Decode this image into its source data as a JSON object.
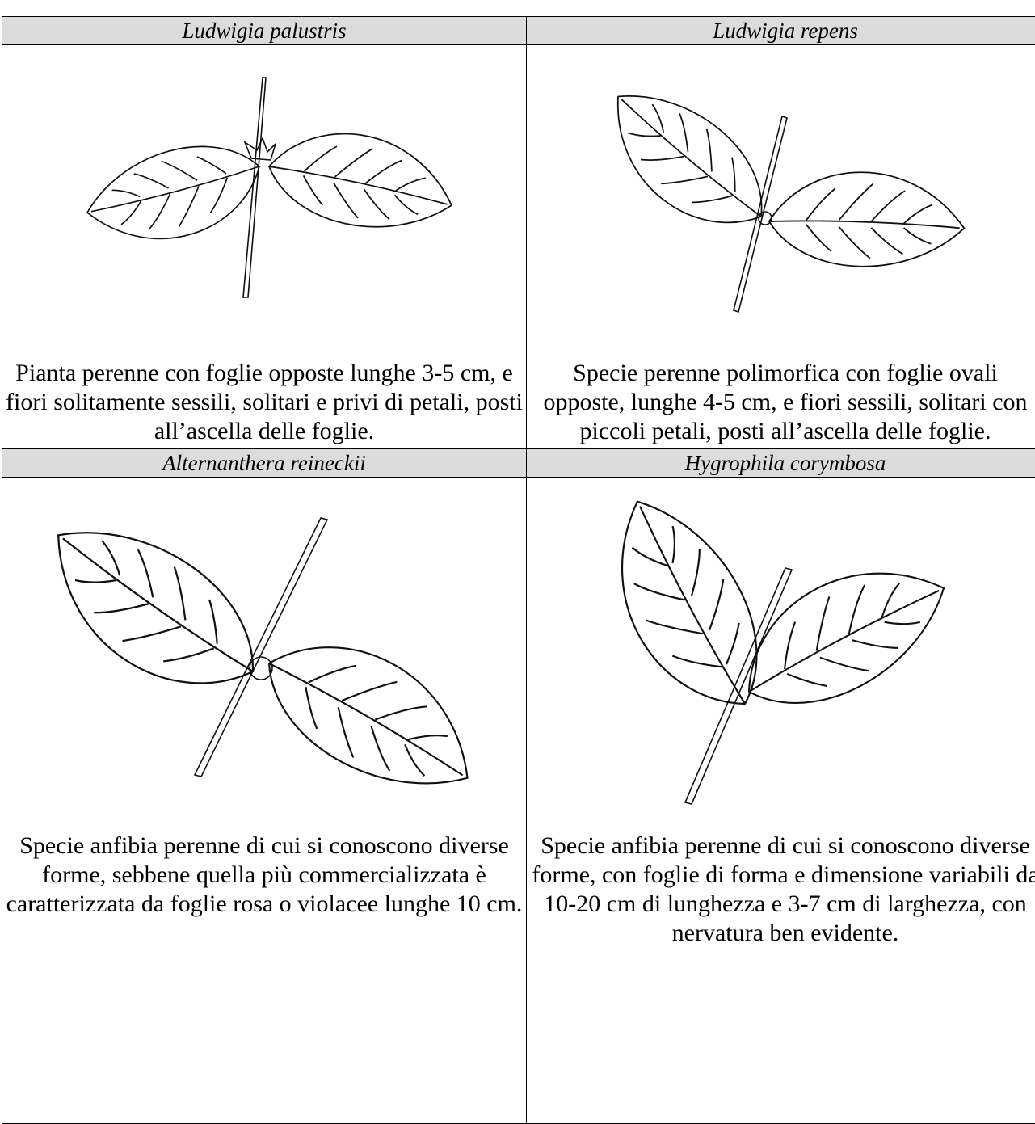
{
  "cells": [
    {
      "name": "Ludwigia palustris",
      "description": "Pianta perenne con foglie opposte lunghe 3-5 cm, e fiori solitamente sessili, solitari e privi di petali, posti all’ascella delle foglie."
    },
    {
      "name": "Ludwigia repens",
      "description": "Specie perenne polimorfica con foglie ovali opposte, lunghe 4-5 cm, e fiori sessili, solitari con piccoli petali, posti all’ascella delle foglie."
    },
    {
      "name": "Alternanthera reineckii",
      "description": "Specie anfibia perenne di cui si conoscono diverse forme, sebbene quella più commercializzata è caratterizzata da foglie rosa o violacee lunghe 10 cm."
    },
    {
      "name": "Hygrophila corymbosa",
      "description": "Specie anfibia perenne di cui si conoscono diverse forme, con foglie di forma e dimensione variabili da 10-20 cm di lunghezza e 3-7 cm di larghezza, con nervatura ben evidente."
    }
  ]
}
